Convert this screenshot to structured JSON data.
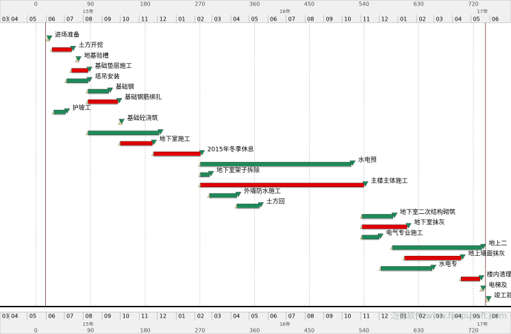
{
  "chart_data": {
    "type": "gantt",
    "xlim": [
      -59,
      782
    ],
    "xticks": [
      0,
      90,
      180,
      270,
      360,
      450,
      540,
      630,
      720
    ],
    "years": [
      {
        "value": 86,
        "label": "15年"
      },
      {
        "value": 410,
        "label": "16年"
      },
      {
        "value": 735,
        "label": "17年"
      }
    ],
    "months": [
      {
        "value": -75,
        "label": "03"
      },
      {
        "value": -44,
        "label": "04"
      },
      {
        "value": -14,
        "label": "05"
      },
      {
        "value": 17,
        "label": "06"
      },
      {
        "value": 47,
        "label": "07"
      },
      {
        "value": 78,
        "label": "08"
      },
      {
        "value": 109,
        "label": "09"
      },
      {
        "value": 139,
        "label": "10"
      },
      {
        "value": 170,
        "label": "11"
      },
      {
        "value": 200,
        "label": "12"
      },
      {
        "value": 231,
        "label": "01"
      },
      {
        "value": 262,
        "label": "02"
      },
      {
        "value": 290,
        "label": "03"
      },
      {
        "value": 321,
        "label": "04"
      },
      {
        "value": 351,
        "label": "05"
      },
      {
        "value": 382,
        "label": "06"
      },
      {
        "value": 412,
        "label": "07"
      },
      {
        "value": 443,
        "label": "08"
      },
      {
        "value": 474,
        "label": "09"
      },
      {
        "value": 504,
        "label": "10"
      },
      {
        "value": 535,
        "label": "11"
      },
      {
        "value": 565,
        "label": "12"
      },
      {
        "value": 596,
        "label": "01"
      },
      {
        "value": 627,
        "label": "02"
      },
      {
        "value": 655,
        "label": "03"
      },
      {
        "value": 686,
        "label": "04"
      },
      {
        "value": 716,
        "label": "05"
      },
      {
        "value": 747,
        "label": "06"
      }
    ],
    "markers": [
      16,
      740
    ],
    "tasks": [
      {
        "name": "进场准备",
        "start": 20,
        "end": 20,
        "color": "#1e8a5a"
      },
      {
        "name": "土方开挖",
        "start": 27,
        "end": 59,
        "color": "#e00000"
      },
      {
        "name": "地基验槽",
        "start": 68,
        "end": 68,
        "color": "#1e8a5a"
      },
      {
        "name": "基础垫层施工",
        "start": 59,
        "end": 86,
        "color": "#e00000"
      },
      {
        "name": "塔吊安装",
        "start": 51,
        "end": 86,
        "color": "#1e8a5a"
      },
      {
        "name": "基础钢",
        "start": 86,
        "end": 120,
        "color": "#1e8a5a"
      },
      {
        "name": "基础钢筋绑扎",
        "start": 86,
        "end": 135,
        "color": "#e00000"
      },
      {
        "name": "护坡工",
        "start": 30,
        "end": 49,
        "color": "#1e8a5a"
      },
      {
        "name": "基础砼浇筑",
        "start": 139,
        "end": 139,
        "color": "#1e8a5a"
      },
      {
        "name": null,
        "start": 86,
        "end": 203,
        "color": "#1e8a5a"
      },
      {
        "name": "地下室施工",
        "start": 139,
        "end": 192,
        "color": "#e00000"
      },
      {
        "name": "2015年冬季休息",
        "start": 194,
        "end": 271,
        "color": "#e00000"
      },
      {
        "name": "水电预",
        "start": 271,
        "end": 519,
        "color": "#1e8a5a"
      },
      {
        "name": "地下室架子拆除",
        "start": 271,
        "end": 286,
        "color": "#1e8a5a"
      },
      {
        "name": "主楼主体施工",
        "start": 271,
        "end": 540,
        "color": "#e00000"
      },
      {
        "name": "外墙防水施工",
        "start": 286,
        "end": 331,
        "color": "#1e8a5a"
      },
      {
        "name": "土方回",
        "start": 331,
        "end": 368,
        "color": "#1e8a5a"
      },
      {
        "name": "地下室二次结构砌筑",
        "start": 537,
        "end": 588,
        "color": "#1e8a5a"
      },
      {
        "name": "地下室抹灰",
        "start": 537,
        "end": 611,
        "color": "#e00000"
      },
      {
        "name": "电气专业施工",
        "start": 537,
        "end": 565,
        "color": "#1e8a5a"
      },
      {
        "name": "地上二",
        "start": 587,
        "end": 734,
        "color": "#1e8a5a"
      },
      {
        "name": "地上墙面抹灰",
        "start": 607,
        "end": 700,
        "color": "#e00000"
      },
      {
        "name": "水电专",
        "start": 568,
        "end": 652,
        "color": "#1e8a5a"
      },
      {
        "name": "楼内清理",
        "start": 700,
        "end": 731,
        "color": "#e00000"
      },
      {
        "name": "电梯及",
        "start": 734,
        "end": 734,
        "color": "#1e8a5a"
      },
      {
        "name": "竣工验",
        "start": 743,
        "end": 743,
        "color": "#1e8a5a"
      }
    ],
    "watermark": "泛普软件 www.fanpusoft.com"
  }
}
